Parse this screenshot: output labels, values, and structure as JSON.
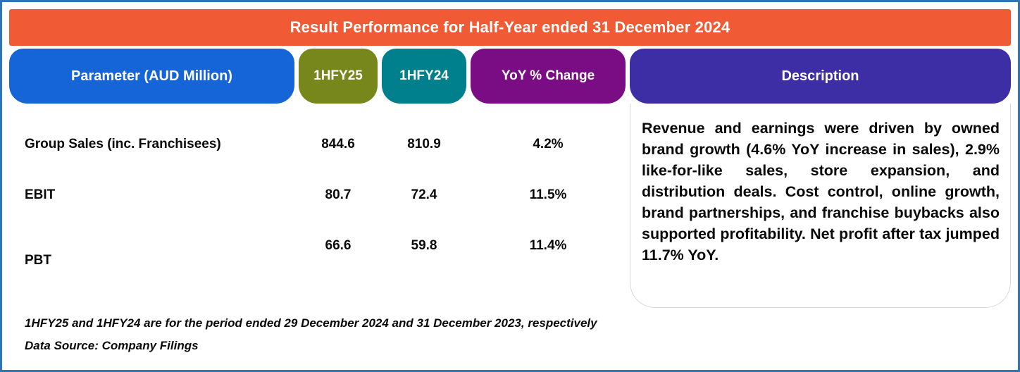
{
  "banner": {
    "title": "Result Performance for Half-Year ended 31 December 2024",
    "bg": "#F05B35"
  },
  "columns": {
    "parameter": {
      "label": "Parameter (AUD Million)",
      "bg": "#1565D8"
    },
    "hfy25": {
      "label": "1HFY25",
      "bg": "#78871B"
    },
    "hfy24": {
      "label": "1HFY24",
      "bg": "#00808C"
    },
    "yoy": {
      "label": "YoY % Change",
      "bg": "#7B0D84"
    },
    "description": {
      "label": "Description",
      "bg": "#3D2EA5"
    }
  },
  "rows": [
    {
      "parameter": "Group Sales (inc. Franchisees)",
      "hfy25": "844.6",
      "hfy24": "810.9",
      "yoy": "4.2%"
    },
    {
      "parameter": "EBIT",
      "hfy25": "80.7",
      "hfy24": "72.4",
      "yoy": "11.5%"
    },
    {
      "parameter": "PBT",
      "hfy25": "66.6",
      "hfy24": "59.8",
      "yoy": "11.4%"
    }
  ],
  "description_text": "Revenue and earnings were driven by owned brand growth (4.6% YoY increase in sales), 2.9% like-for-like sales, store expansion, and distribution deals. Cost control, online growth, brand partnerships, and franchise buybacks also supported profitability. Net profit after tax jumped 11.7% YoY.",
  "footnotes": {
    "line1": "1HFY25 and 1HFY24 are for the period ended 29 December 2024 and 31 December 2023, respectively",
    "line2": "Data Source: Company Filings"
  },
  "colors": {
    "frame_border": "#2E74B5",
    "description_box_border": "#D8D8D8",
    "text": "#0A0A0A",
    "header_text": "#FFFFFF"
  },
  "chart_data": {
    "type": "table",
    "title": "Result Performance for Half-Year ended 31 December 2024",
    "columns": [
      "Parameter (AUD Million)",
      "1HFY25",
      "1HFY24",
      "YoY % Change",
      "Description"
    ],
    "rows": [
      [
        "Group Sales (inc. Franchisees)",
        844.6,
        810.9,
        "4.2%"
      ],
      [
        "EBIT",
        80.7,
        72.4,
        "11.5%"
      ],
      [
        "PBT",
        66.6,
        59.8,
        "11.4%"
      ]
    ],
    "description": "Revenue and earnings were driven by owned brand growth (4.6% YoY increase in sales), 2.9% like-for-like sales, store expansion, and distribution deals. Cost control, online growth, brand partnerships, and franchise buybacks also supported profitability. Net profit after tax jumped 11.7% YoY.",
    "footnotes": [
      "1HFY25 and 1HFY24 are for the period ended 29 December 2024 and 31 December 2023, respectively",
      "Data Source: Company Filings"
    ],
    "units": "AUD Million"
  }
}
